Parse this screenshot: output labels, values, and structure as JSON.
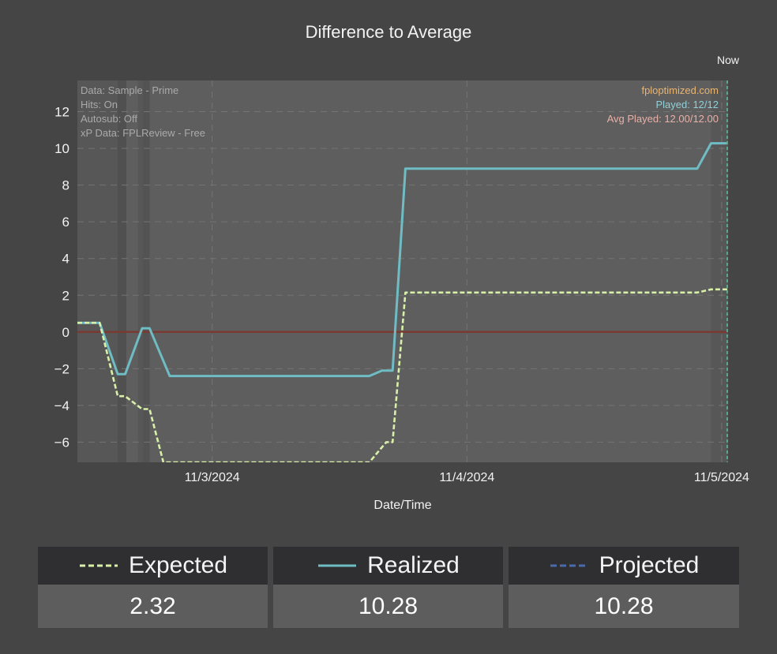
{
  "title": "Difference to Average",
  "now_label": "Now",
  "info_left": [
    "Data: Sample - Prime",
    "Hits: On",
    "Autosub: Off",
    "xP Data: FPLReview - Free"
  ],
  "info_right": {
    "site": "fploptimized.com",
    "played": "Played: 12/12",
    "avg_played": "Avg Played: 12.00/12.00"
  },
  "colors": {
    "expected": "#d8f0a8",
    "realized": "#6fbcc4",
    "projected": "#4a6aaa",
    "zero_line": "#7a3a32",
    "site": "#e8b474",
    "played": "#8fd0da",
    "avg_played": "#eab0a8"
  },
  "chart_data": {
    "type": "line",
    "title": "Difference to Average",
    "xlabel": "Date/Time",
    "ylabel": "",
    "x_ticks": [
      {
        "t": 25,
        "label": "11/3/2024"
      },
      {
        "t": 49,
        "label": "11/4/2024"
      },
      {
        "t": 73,
        "label": "11/5/2024"
      }
    ],
    "x_range": [
      12.3,
      73.6
    ],
    "ylim": [
      -7.1,
      13.7
    ],
    "y_ticks": [
      -6,
      -4,
      -2,
      0,
      2,
      4,
      6,
      8,
      10,
      12
    ],
    "grid": true,
    "series": [
      {
        "name": "Realized",
        "style": "solid",
        "points": [
          [
            12.3,
            0.5
          ],
          [
            14.4,
            0.5
          ],
          [
            16.1,
            -2.3
          ],
          [
            16.8,
            -2.3
          ],
          [
            18.4,
            0.2
          ],
          [
            19.1,
            0.2
          ],
          [
            21.0,
            -2.4
          ],
          [
            39.8,
            -2.4
          ],
          [
            41.0,
            -2.1
          ],
          [
            42.0,
            -2.1
          ],
          [
            43.2,
            8.9
          ],
          [
            70.7,
            8.9
          ],
          [
            72.0,
            10.28
          ],
          [
            73.6,
            10.28
          ]
        ]
      },
      {
        "name": "Expected",
        "style": "dashed",
        "points": [
          [
            12.3,
            0.5
          ],
          [
            14.4,
            0.5
          ],
          [
            16.1,
            -3.5
          ],
          [
            16.8,
            -3.5
          ],
          [
            18.4,
            -4.2
          ],
          [
            19.1,
            -4.2
          ],
          [
            20.4,
            -7.1
          ],
          [
            39.8,
            -7.1
          ],
          [
            41.4,
            -6.0
          ],
          [
            42.0,
            -6.0
          ],
          [
            43.2,
            2.15
          ],
          [
            70.7,
            2.15
          ],
          [
            72.0,
            2.32
          ],
          [
            73.6,
            2.32
          ]
        ]
      }
    ],
    "shaded_bands": [
      [
        12.3,
        16.9
      ],
      [
        18.0,
        19.1
      ],
      [
        72.0,
        73.6
      ]
    ]
  },
  "legend": [
    {
      "key": "expected",
      "label": "Expected",
      "value": "2.32"
    },
    {
      "key": "realized",
      "label": "Realized",
      "value": "10.28"
    },
    {
      "key": "projected",
      "label": "Projected",
      "value": "10.28"
    }
  ]
}
